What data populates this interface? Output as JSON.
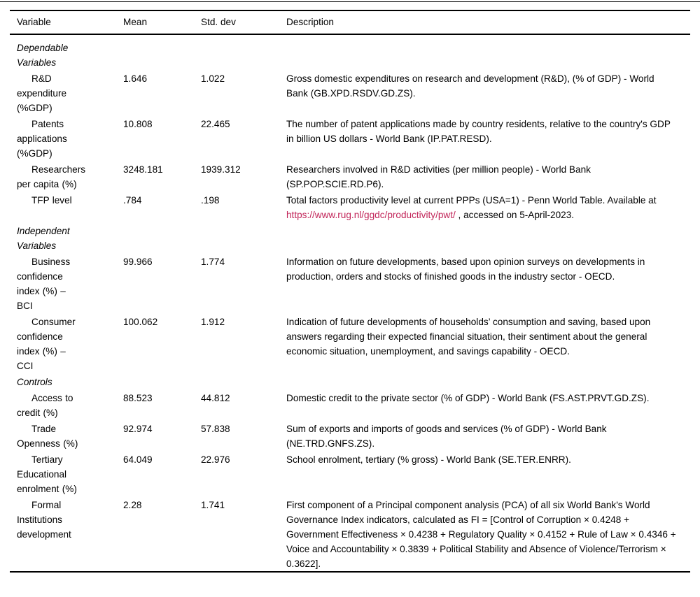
{
  "page": {
    "background": "#ffffff",
    "text_color": "#000000",
    "rule_color": "#000000",
    "link_color": "#c2265a"
  },
  "table": {
    "headers": [
      "Variable",
      "Mean",
      "Std. dev",
      "Description"
    ],
    "rows": [
      {
        "kind": "section",
        "label": "Dependable Variables"
      },
      {
        "kind": "data",
        "variable": "R&D expenditure (%GDP)",
        "mean": "1.646",
        "std_dev": "1.022",
        "description": [
          {
            "text": "Gross domestic expenditures on research and development (R&D), (% of GDP) - World Bank (GB.XPD.RSDV.GD.ZS)."
          }
        ]
      },
      {
        "kind": "data",
        "variable": "Patents applications (%GDP)",
        "mean": "10.808",
        "std_dev": "22.465",
        "description": [
          {
            "text": "The number of patent applications made by country residents, relative to the country's GDP in billion US dollars - World Bank (IP.PAT.RESD)."
          }
        ]
      },
      {
        "kind": "data",
        "variable": "Researchers per capita (%)",
        "mean": "3248.181",
        "std_dev": "1939.312",
        "description": [
          {
            "text": "Researchers involved in R&D activities (per million people) - World Bank (SP.POP.SCIE.RD.P6)."
          }
        ]
      },
      {
        "kind": "data",
        "variable": "TFP level",
        "mean": ".784",
        "std_dev": ".198",
        "description": [
          {
            "text": "Total factors productivity level at current PPPs (USA=1) - Penn World Table. Available at  "
          },
          {
            "text": "https://www.rug.nl/ggdc/productivity/pwt/",
            "link": true
          },
          {
            "text": " , accessed on 5-April-2023."
          }
        ]
      },
      {
        "kind": "section",
        "label": "Independent Variables"
      },
      {
        "kind": "data",
        "variable": "Business confidence index (%) – BCI",
        "mean": "99.966",
        "std_dev": "1.774",
        "description": [
          {
            "text": "Information on future developments, based upon opinion surveys on developments in production, orders and stocks of finished goods in the industry sector - OECD."
          }
        ]
      },
      {
        "kind": "data",
        "variable": "Consumer confidence index (%) – CCI",
        "mean": "100.062",
        "std_dev": "1.912",
        "description": [
          {
            "text": "Indication of future developments of households’ consumption and saving, based upon answers regarding their expected financial situation, their sentiment about the general economic situation, unemployment, and savings capability - OECD."
          }
        ]
      },
      {
        "kind": "section",
        "label": "Controls"
      },
      {
        "kind": "data",
        "variable": "Access to credit (%)",
        "mean": "88.523",
        "std_dev": "44.812",
        "description": [
          {
            "text": "Domestic credit to the private sector (% of GDP) - World Bank (FS.AST.PRVT.GD.ZS)."
          }
        ]
      },
      {
        "kind": "data",
        "variable": "Trade Openness (%)",
        "mean": "92.974",
        "std_dev": "57.838",
        "description": [
          {
            "text": "Sum of exports and imports of goods and services (% of GDP) - World Bank (NE.TRD.GNFS.ZS)."
          }
        ]
      },
      {
        "kind": "data",
        "variable": "Tertiary Educational enrolment (%)",
        "mean": "64.049",
        "std_dev": "22.976",
        "description": [
          {
            "text": "School enrolment, tertiary (% gross) - World Bank (SE.TER.ENRR)."
          }
        ]
      },
      {
        "kind": "data",
        "variable": "Formal Institutions development",
        "mean": "2.28",
        "std_dev": "1.741",
        "description": [
          {
            "text": "First component of a Principal component analysis (PCA) of all six World Bank's World Governance Index indicators, calculated as FI = [Control of Corruption × 0.4248 + Government Effectiveness × 0.4238 + Regulatory Quality × 0.4152 + Rule of Law × 0.4346 + Voice and Accountability × 0.3839 + Political Stability and Absence of Violence/Terrorism × 0.3622]."
          }
        ]
      }
    ]
  }
}
